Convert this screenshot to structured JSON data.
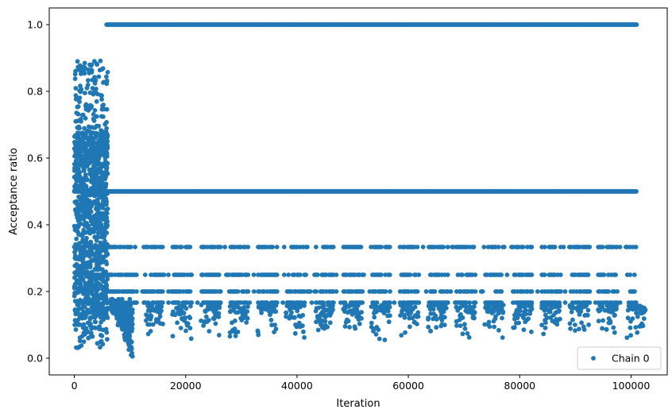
{
  "chart_data": {
    "type": "scatter",
    "xlabel": "Iteration",
    "ylabel": "Acceptance ratio",
    "xlim": [
      -4500,
      106500
    ],
    "ylim": [
      -0.05,
      1.05
    ],
    "x_ticks": [
      0,
      20000,
      40000,
      60000,
      80000,
      100000
    ],
    "x_tick_labels": [
      "0",
      "20000",
      "40000",
      "60000",
      "80000",
      "100000"
    ],
    "y_ticks": [
      0.0,
      0.2,
      0.4,
      0.6,
      0.8,
      1.0
    ],
    "y_tick_labels": [
      "0.0",
      "0.2",
      "0.4",
      "0.6",
      "0.8",
      "1.0"
    ],
    "grid": false,
    "legend_position": "lower-right",
    "series": [
      {
        "name": "Chain 0",
        "color": "#1f77b4",
        "marker": "circle",
        "x_range": [
          0,
          101000
        ],
        "approximate": true,
        "levels": [
          {
            "y": 1.0,
            "x_from": 5800,
            "x_to": 101000
          },
          {
            "y": 0.5,
            "x_from": 0,
            "x_to": 101000
          },
          {
            "y": 0.3333,
            "x_from": 0,
            "x_to": 101000,
            "sparse": true
          },
          {
            "y": 0.25,
            "x_from": 0,
            "x_to": 101000,
            "sparse": true
          },
          {
            "y": 0.2,
            "x_from": 6000,
            "x_to": 101000,
            "sparse": true
          },
          {
            "y": 0.1667,
            "x_from": 6000,
            "x_to": 101000,
            "sparse": true
          }
        ],
        "warmup_cloud": {
          "x_from": 0,
          "x_to": 6000,
          "y_from": 0.03,
          "y_to": 0.9
        },
        "dip_cluster": {
          "x_from": 6500,
          "x_to": 10500,
          "y_from": 0.0,
          "y_to": 0.18
        },
        "periodic_tails": {
          "start_x": 12500,
          "period": 5100,
          "y_min": 0.05,
          "y_max": 0.16
        }
      }
    ]
  }
}
